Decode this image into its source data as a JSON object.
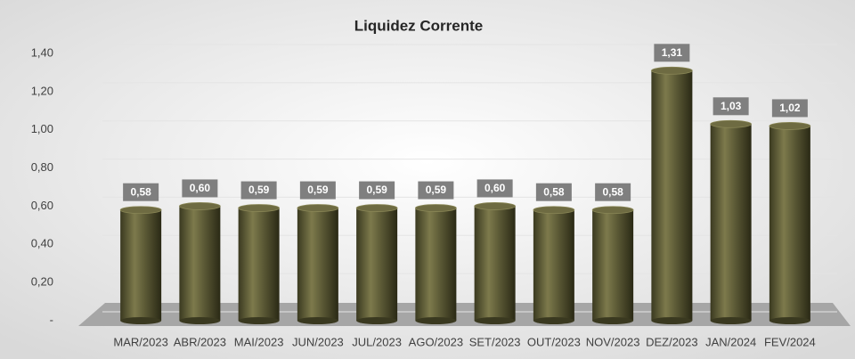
{
  "chart_data": {
    "type": "bar",
    "title": "Liquidez Corrente",
    "categories": [
      "MAR/2023",
      "ABR/2023",
      "MAI/2023",
      "JUN/2023",
      "JUL/2023",
      "AGO/2023",
      "SET/2023",
      "OUT/2023",
      "NOV/2023",
      "DEZ/2023",
      "JAN/2024",
      "FEV/2024"
    ],
    "values": [
      0.58,
      0.6,
      0.59,
      0.59,
      0.59,
      0.59,
      0.6,
      0.58,
      0.58,
      1.31,
      1.03,
      1.02
    ],
    "value_labels": [
      "0,58",
      "0,60",
      "0,59",
      "0,59",
      "0,59",
      "0,59",
      "0,60",
      "0,58",
      "0,58",
      "1,31",
      "1,03",
      "1,02"
    ],
    "color": "#5c5a36",
    "ylim": [
      0,
      1.4
    ],
    "yticks": [
      {
        "value": 0,
        "label": "-"
      },
      {
        "value": 0.2,
        "label": "0,20"
      },
      {
        "value": 0.4,
        "label": "0,40"
      },
      {
        "value": 0.6,
        "label": "0,60"
      },
      {
        "value": 0.8,
        "label": "0,80"
      },
      {
        "value": 1.0,
        "label": "1,00"
      },
      {
        "value": 1.2,
        "label": "1,20"
      },
      {
        "value": 1.4,
        "label": "1,40"
      }
    ],
    "grid": true
  }
}
